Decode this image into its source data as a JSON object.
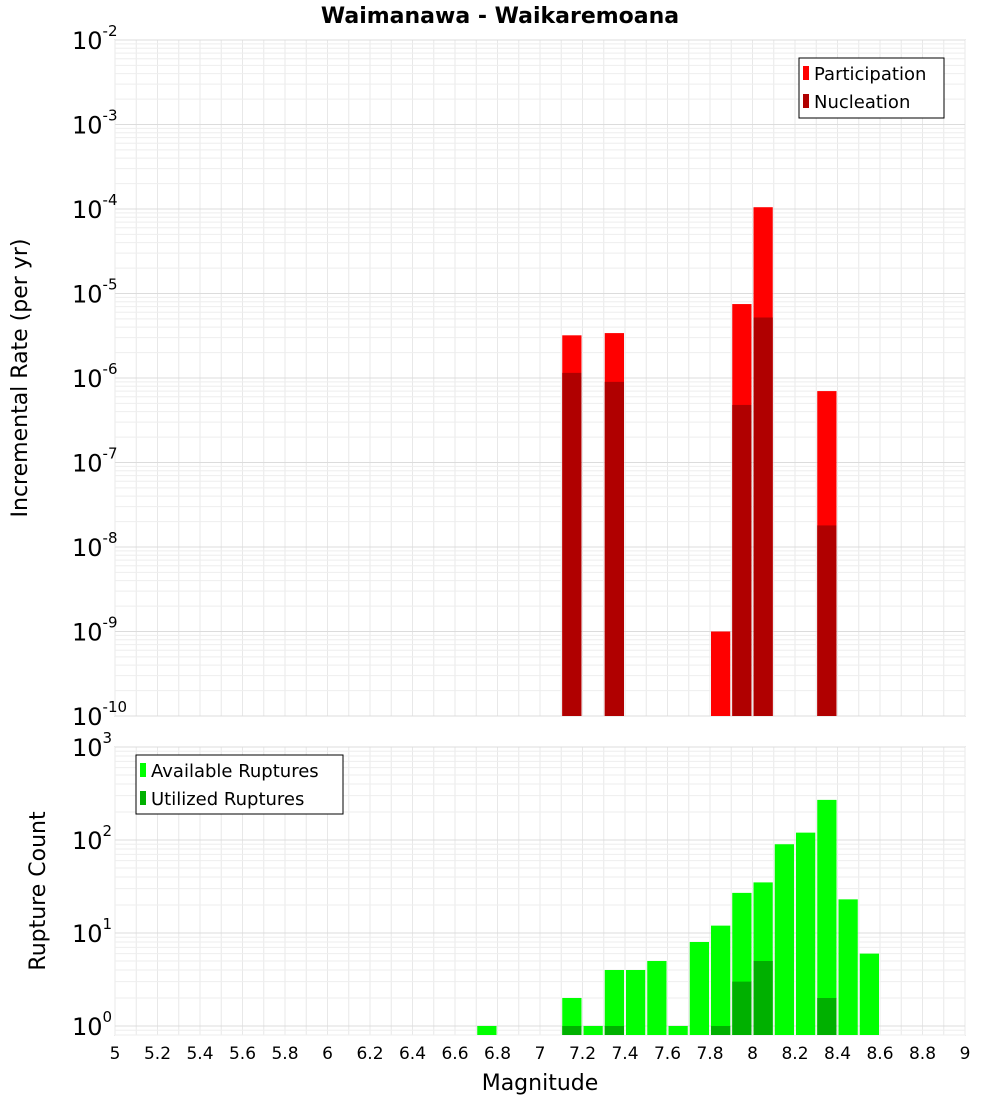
{
  "chart_data": [
    {
      "type": "bar",
      "title": "Waimanawa - Waikaremoana",
      "ylabel": "Incremental Rate (per yr)",
      "xlabel": "",
      "yscale": "log",
      "ylim": [
        1e-10,
        0.01
      ],
      "xlim": [
        5,
        9
      ],
      "grid": true,
      "legend": "top-right",
      "yticks": [
        {
          "base": "10",
          "exp": "-2",
          "value": 0.01
        },
        {
          "base": "10",
          "exp": "-3",
          "value": 0.001
        },
        {
          "base": "10",
          "exp": "-4",
          "value": 0.0001
        },
        {
          "base": "10",
          "exp": "-5",
          "value": 1e-05
        },
        {
          "base": "10",
          "exp": "-6",
          "value": 1e-06
        },
        {
          "base": "10",
          "exp": "-7",
          "value": 1e-07
        },
        {
          "base": "10",
          "exp": "-8",
          "value": 1e-08
        },
        {
          "base": "10",
          "exp": "-9",
          "value": 1e-09
        },
        {
          "base": "10",
          "exp": "-10",
          "value": 1e-10
        }
      ],
      "series": [
        {
          "name": "Participation",
          "color": "#ff0000",
          "points": [
            {
              "x": 7.15,
              "y": 3.2e-06
            },
            {
              "x": 7.35,
              "y": 3.4e-06
            },
            {
              "x": 7.85,
              "y": 1e-09
            },
            {
              "x": 7.95,
              "y": 7.5e-06
            },
            {
              "x": 8.05,
              "y": 0.000105
            },
            {
              "x": 8.35,
              "y": 7e-07
            }
          ]
        },
        {
          "name": "Nucleation",
          "color": "#b00000",
          "points": [
            {
              "x": 7.15,
              "y": 1.15e-06
            },
            {
              "x": 7.35,
              "y": 9e-07
            },
            {
              "x": 7.95,
              "y": 4.8e-07
            },
            {
              "x": 8.05,
              "y": 5.2e-06
            },
            {
              "x": 8.35,
              "y": 1.8e-08
            }
          ]
        }
      ]
    },
    {
      "type": "bar",
      "title": "",
      "ylabel": "Rupture Count",
      "xlabel": "Magnitude",
      "yscale": "log",
      "ylim": [
        0.8,
        1000
      ],
      "xlim": [
        5,
        9
      ],
      "grid": true,
      "legend": "top-left",
      "xticks": [
        "5",
        "5.2",
        "5.4",
        "5.6",
        "5.8",
        "6",
        "6.2",
        "6.4",
        "6.6",
        "6.8",
        "7",
        "7.2",
        "7.4",
        "7.6",
        "7.8",
        "8",
        "8.2",
        "8.4",
        "8.6",
        "8.8",
        "9"
      ],
      "yticks": [
        {
          "base": "10",
          "exp": "3",
          "value": 1000
        },
        {
          "base": "10",
          "exp": "2",
          "value": 100
        },
        {
          "base": "10",
          "exp": "1",
          "value": 10
        },
        {
          "base": "10",
          "exp": "0",
          "value": 1
        }
      ],
      "series": [
        {
          "name": "Available Ruptures",
          "color": "#00ff00",
          "points": [
            {
              "x": 6.75,
              "y": 1
            },
            {
              "x": 7.15,
              "y": 2
            },
            {
              "x": 7.25,
              "y": 1
            },
            {
              "x": 7.35,
              "y": 4
            },
            {
              "x": 7.45,
              "y": 4
            },
            {
              "x": 7.55,
              "y": 5
            },
            {
              "x": 7.65,
              "y": 1
            },
            {
              "x": 7.75,
              "y": 8
            },
            {
              "x": 7.85,
              "y": 12
            },
            {
              "x": 7.95,
              "y": 27
            },
            {
              "x": 8.05,
              "y": 35
            },
            {
              "x": 8.15,
              "y": 90
            },
            {
              "x": 8.25,
              "y": 120
            },
            {
              "x": 8.35,
              "y": 270
            },
            {
              "x": 8.45,
              "y": 23
            },
            {
              "x": 8.55,
              "y": 6
            }
          ]
        },
        {
          "name": "Utilized Ruptures",
          "color": "#00b000",
          "points": [
            {
              "x": 7.15,
              "y": 1
            },
            {
              "x": 7.35,
              "y": 1
            },
            {
              "x": 7.85,
              "y": 1
            },
            {
              "x": 7.95,
              "y": 3
            },
            {
              "x": 8.05,
              "y": 5
            },
            {
              "x": 8.35,
              "y": 2
            }
          ]
        }
      ]
    }
  ]
}
